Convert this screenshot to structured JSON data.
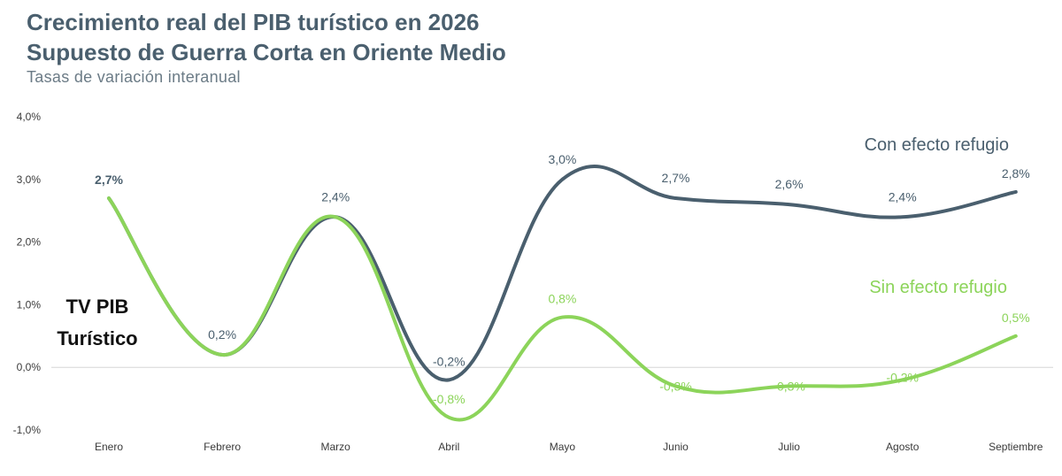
{
  "header": {
    "title_line1": "Crecimiento real del PIB turístico en 2026",
    "title_line2": "Supuesto de Guerra Corta en Oriente Medio",
    "subtitle": "Tasas de variación interanual"
  },
  "chart_data": {
    "type": "line",
    "categories": [
      "Enero",
      "Febrero",
      "Marzo",
      "Abril",
      "Mayo",
      "Junio",
      "Julio",
      "Agosto",
      "Septiembre"
    ],
    "ylim": [
      -1.0,
      4.0
    ],
    "yticks": [
      "4,0%",
      "3,0%",
      "2,0%",
      "1,0%",
      "0,0%",
      "-1,0%"
    ],
    "ytick_values": [
      4.0,
      3.0,
      2.0,
      1.0,
      0.0,
      -1.0
    ],
    "grid": false,
    "annotation": [
      "TV PIB",
      "Turístico"
    ],
    "series": [
      {
        "name": "Con efecto refugio",
        "color": "#4a5f6e",
        "values": [
          2.7,
          0.2,
          2.4,
          -0.2,
          3.0,
          2.7,
          2.6,
          2.4,
          2.8
        ],
        "labels": [
          "2,7%",
          "0,2%",
          "2,4%",
          "-0,2%",
          "3,0%",
          "2,7%",
          "2,6%",
          "2,4%",
          "2,8%"
        ]
      },
      {
        "name": "Sin efecto refugio",
        "color": "#8cd45a",
        "values": [
          2.7,
          0.2,
          2.4,
          -0.8,
          0.8,
          -0.3,
          -0.3,
          -0.2,
          0.5
        ],
        "labels": [
          "",
          "",
          "",
          "-0,8%",
          "0,8%",
          "-0,3%",
          "-0,3%",
          "-0,2%",
          "0,5%"
        ]
      }
    ]
  }
}
